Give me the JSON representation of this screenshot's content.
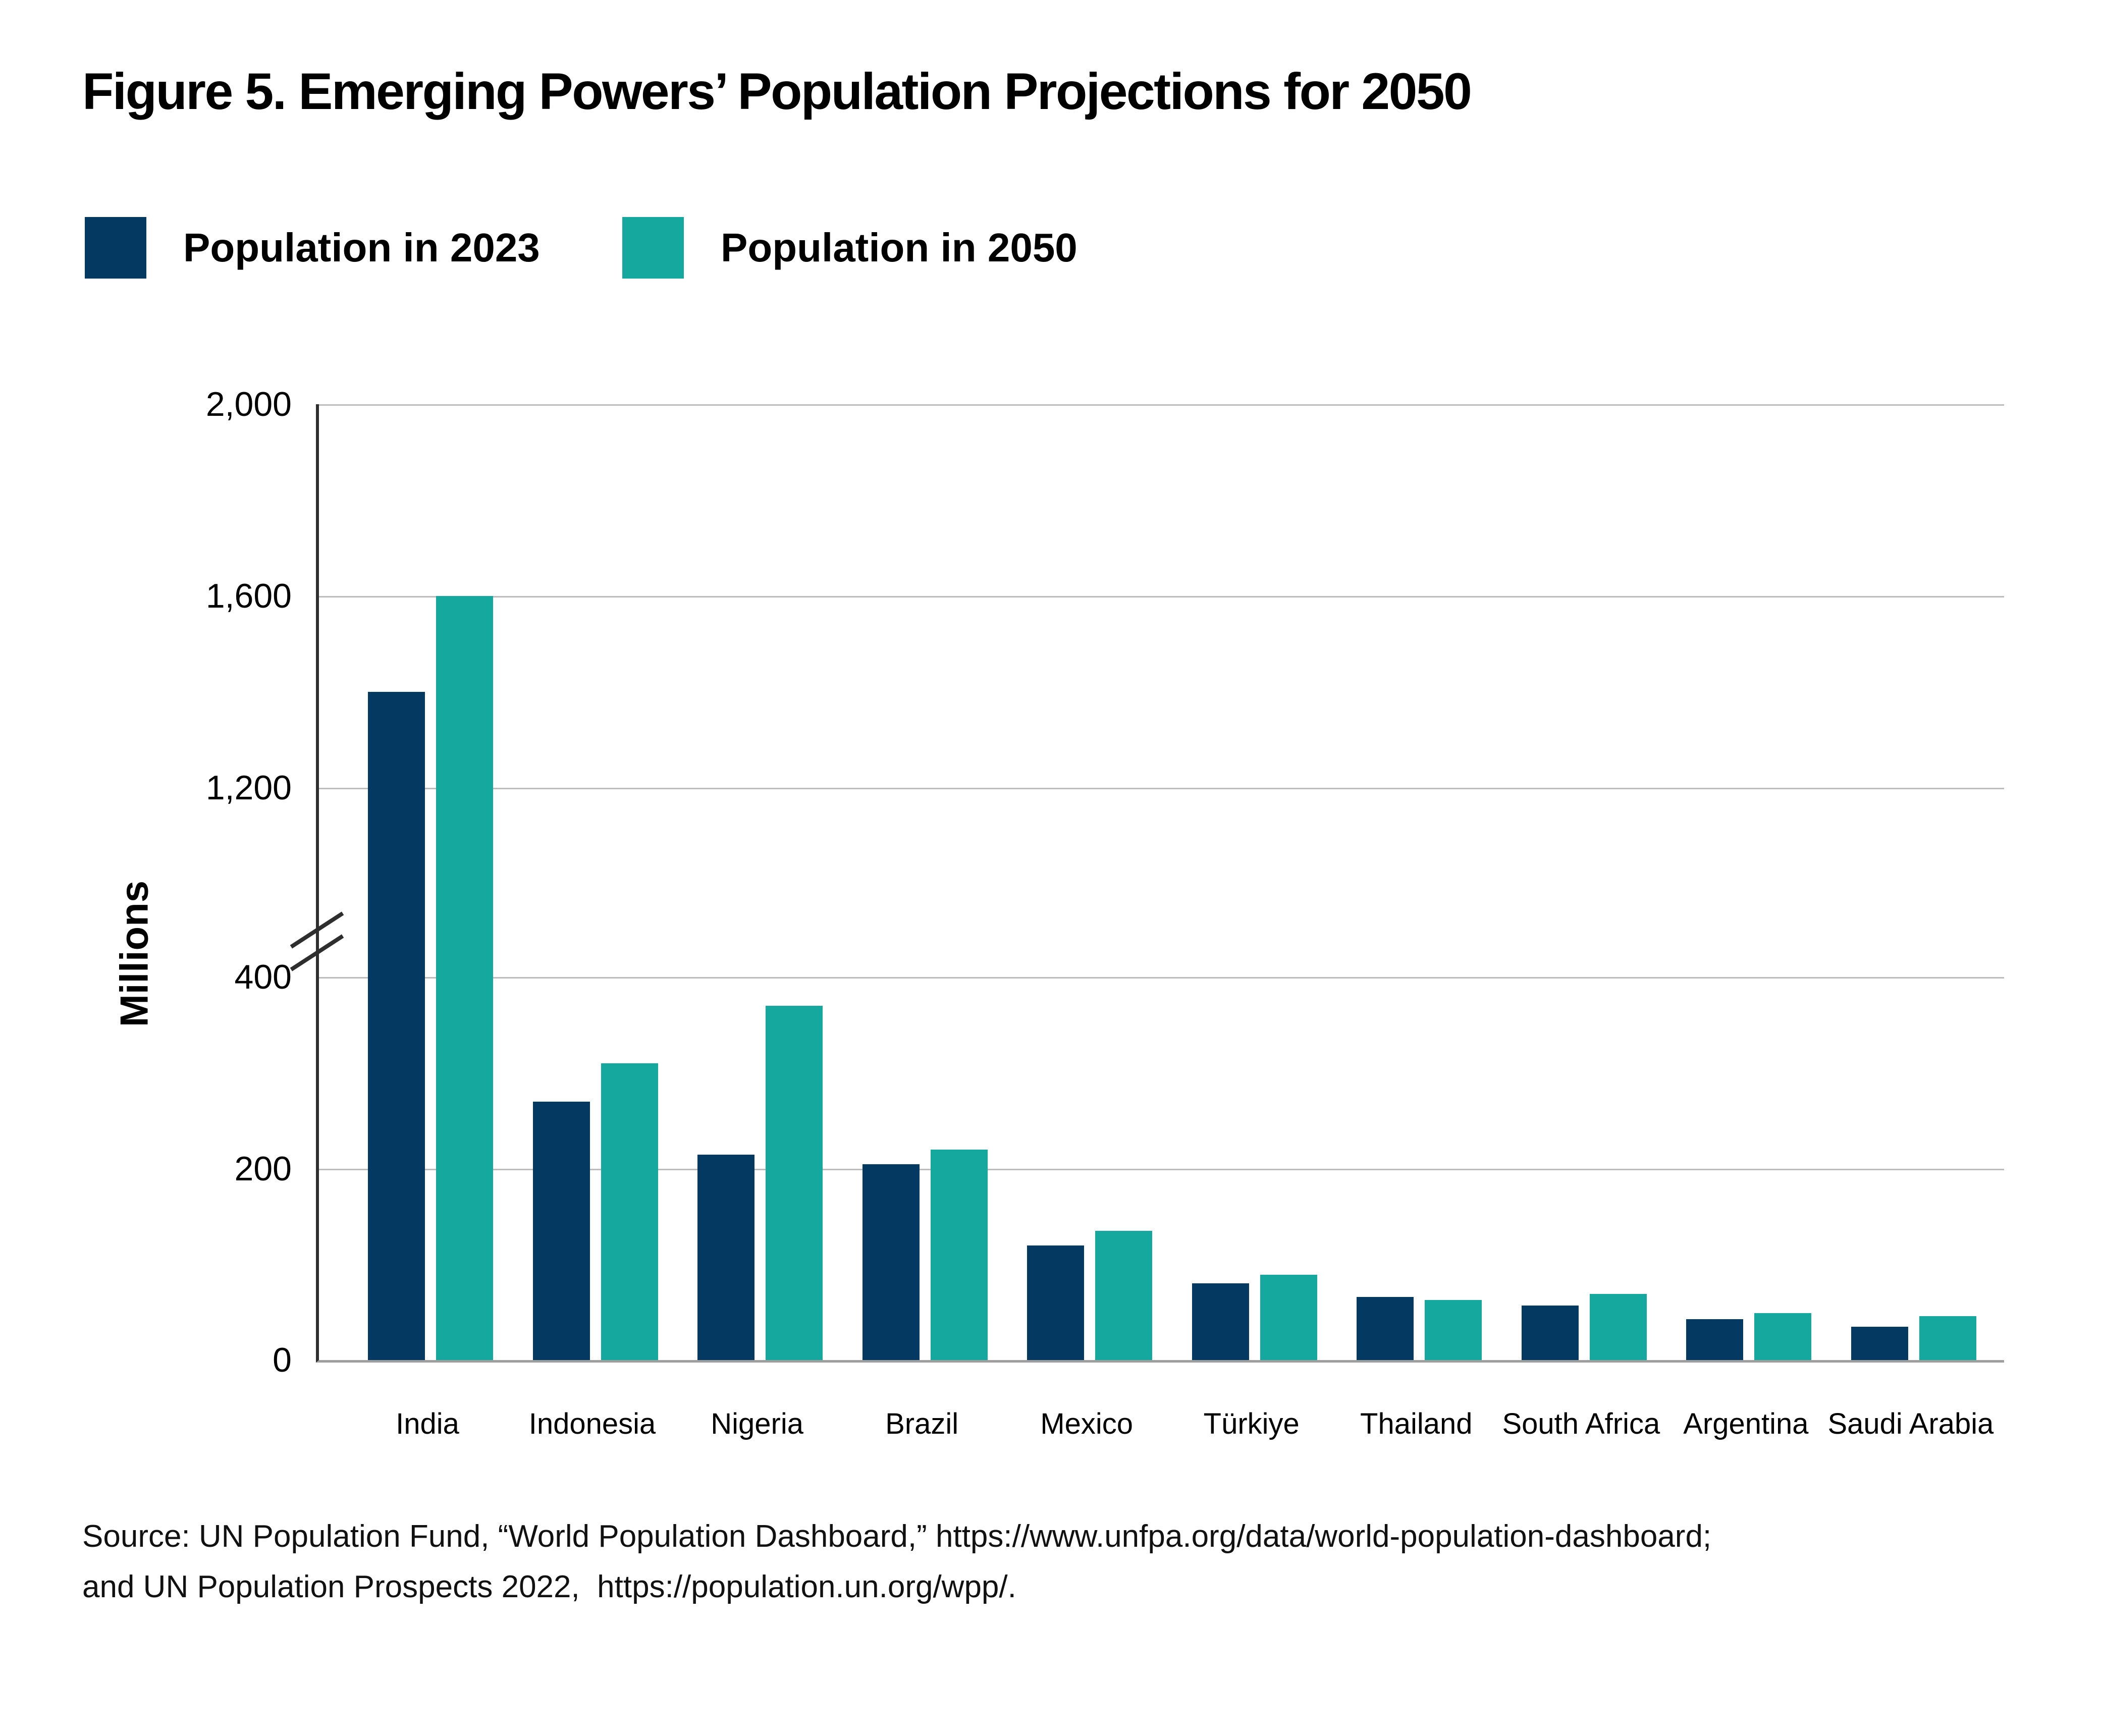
{
  "page": {
    "title": "Figure 5. Emerging Powers’ Population Projections for 2050"
  },
  "legend": {
    "items": [
      {
        "label": "Population in 2023",
        "color": "#043a61"
      },
      {
        "label": "Population in 2050",
        "color": "#14a89e"
      }
    ]
  },
  "y_axis": {
    "label": "Millions",
    "ticks": [
      {
        "value": 2000,
        "label": "2,000"
      },
      {
        "value": 1600,
        "label": "1,600"
      },
      {
        "value": 1200,
        "label": "1,200"
      },
      {
        "value": 400,
        "label": "400"
      },
      {
        "value": 200,
        "label": "200"
      },
      {
        "value": 0,
        "label": "0"
      }
    ]
  },
  "source": {
    "line1": "Source: UN Population Fund, “World Population Dashboard,” https://www.unfpa.org/data/world-population-dashboard;",
    "line2": "and UN Population Prospects 2022,  https://population.un.org/wpp/."
  },
  "chart_data": {
    "type": "bar",
    "title": "Figure 5. Emerging Powers’ Population Projections for 2050",
    "categories": [
      "India",
      "Indonesia",
      "Nigeria",
      "Brazil",
      "Mexico",
      "Türkiye",
      "Thailand",
      "South Africa",
      "Argentina",
      "Saudi Arabia"
    ],
    "series": [
      {
        "name": "Population in 2023",
        "year": "2023",
        "color": "#043a61",
        "values": [
          1400,
          270,
          215,
          205,
          120,
          80,
          66,
          57,
          43,
          35
        ]
      },
      {
        "name": "Population in 2050",
        "year": "2050",
        "color": "#14a89e",
        "values": [
          1600,
          310,
          370,
          220,
          135,
          89,
          63,
          69,
          49,
          46
        ]
      }
    ],
    "ylabel": "Millions",
    "y_ticks": [
      0,
      200,
      400,
      1200,
      1600,
      2000
    ],
    "axis_break_between": [
      400,
      1200
    ],
    "ylim_lower_section": [
      0,
      430
    ],
    "ylim_upper_section": [
      1100,
      2000
    ],
    "grid": true,
    "legend_position": "top-left"
  }
}
